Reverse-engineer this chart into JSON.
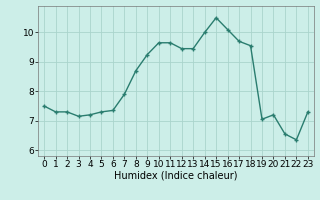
{
  "x": [
    0,
    1,
    2,
    3,
    4,
    5,
    6,
    7,
    8,
    9,
    10,
    11,
    12,
    13,
    14,
    15,
    16,
    17,
    18,
    19,
    20,
    21,
    22,
    23
  ],
  "y": [
    7.5,
    7.3,
    7.3,
    7.15,
    7.2,
    7.3,
    7.35,
    7.9,
    8.7,
    9.25,
    9.65,
    9.65,
    9.45,
    9.45,
    10.0,
    10.5,
    10.1,
    9.7,
    9.55,
    7.05,
    7.2,
    6.55,
    6.35,
    7.3
  ],
  "line_color": "#2a7d6f",
  "marker": "+",
  "marker_color": "#2a7d6f",
  "bg_color": "#cceee8",
  "grid_color": "#aad4cc",
  "xlabel": "Humidex (Indice chaleur)",
  "xlabel_fontsize": 7,
  "tick_fontsize": 6.5,
  "ylim": [
    5.8,
    10.9
  ],
  "xlim": [
    -0.5,
    23.5
  ],
  "yticks": [
    6,
    7,
    8,
    9,
    10
  ],
  "xticks": [
    0,
    1,
    2,
    3,
    4,
    5,
    6,
    7,
    8,
    9,
    10,
    11,
    12,
    13,
    14,
    15,
    16,
    17,
    18,
    19,
    20,
    21,
    22,
    23
  ],
  "line_width": 1.0,
  "marker_size": 3.5
}
